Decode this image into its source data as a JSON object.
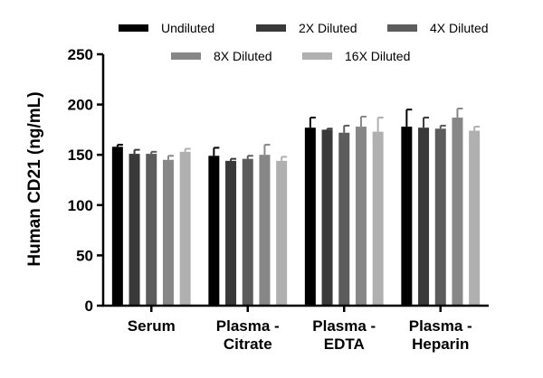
{
  "chart_data": {
    "type": "bar",
    "title": "",
    "xlabel": "",
    "ylabel": "Human CD21 (ng/mL)",
    "ylim": [
      0,
      250
    ],
    "yticks": [
      0,
      50,
      100,
      150,
      200,
      250
    ],
    "categories": [
      [
        "Serum"
      ],
      [
        "Plasma -",
        "Citrate"
      ],
      [
        "Plasma -",
        "EDTA"
      ],
      [
        "Plasma -",
        "Heparin"
      ]
    ],
    "series": [
      {
        "name": "Undiluted",
        "color": "#000000",
        "values": [
          158,
          149,
          177,
          178
        ],
        "errors": [
          2,
          8,
          10,
          17
        ]
      },
      {
        "name": "2X Diluted",
        "color": "#393939",
        "values": [
          151,
          144,
          175,
          177
        ],
        "errors": [
          4,
          2,
          1,
          10
        ]
      },
      {
        "name": "4X Diluted",
        "color": "#5c5c5c",
        "values": [
          151,
          146,
          172,
          176
        ],
        "errors": [
          2,
          3,
          7,
          3
        ]
      },
      {
        "name": "8X Diluted",
        "color": "#878787",
        "values": [
          145,
          150,
          178,
          187
        ],
        "errors": [
          4,
          10,
          10,
          9
        ]
      },
      {
        "name": "16X Diluted",
        "color": "#b0b0b0",
        "values": [
          153,
          144,
          173,
          174
        ],
        "errors": [
          3,
          4,
          14,
          4
        ]
      }
    ],
    "legend_position": "top",
    "grid": false
  }
}
